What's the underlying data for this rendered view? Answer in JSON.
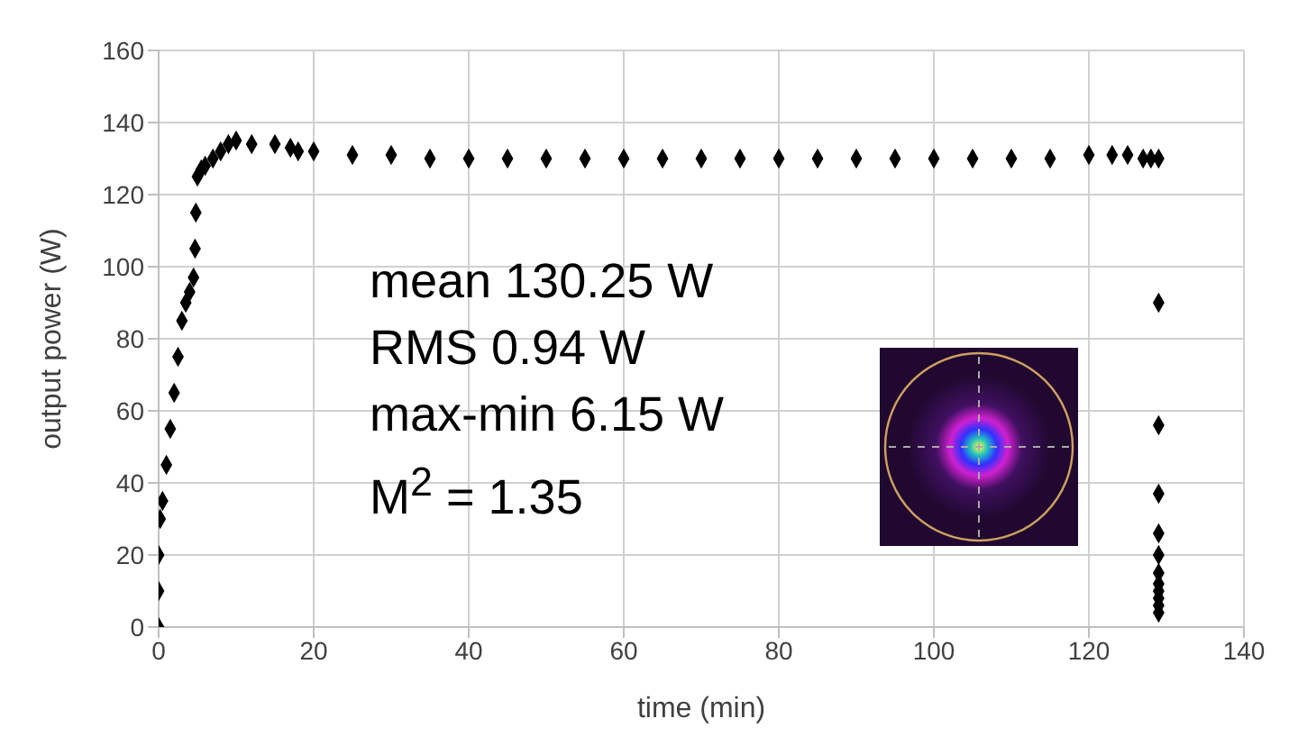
{
  "chart_data": {
    "type": "scatter",
    "xlabel": "time (min)",
    "ylabel": "output power (W)",
    "xlim": [
      0,
      140
    ],
    "xticks": [
      0,
      20,
      40,
      60,
      80,
      100,
      120,
      140
    ],
    "ylim": [
      0,
      160
    ],
    "yticks": [
      0,
      20,
      40,
      60,
      80,
      100,
      120,
      140,
      160
    ],
    "grid": true,
    "marker": "diamond",
    "annotations": [
      "mean 130.25 W",
      "RMS 0.94 W",
      "max-min 6.15 W",
      "M$^{2}$ = 1.35"
    ],
    "series": [
      {
        "color": "#000000",
        "x": [
          0,
          0,
          0,
          0.2,
          0.5,
          1,
          1.5,
          2,
          2.5,
          3,
          3.5,
          4,
          4.5,
          4.7,
          4.8,
          5,
          5.5,
          6,
          7,
          8,
          9,
          10,
          12,
          15,
          17,
          18,
          20,
          25,
          30,
          35,
          40,
          45,
          50,
          55,
          60,
          65,
          70,
          75,
          80,
          85,
          90,
          95,
          100,
          105,
          110,
          115,
          120,
          123,
          125,
          127,
          128,
          129,
          129,
          129,
          129,
          129,
          129,
          129,
          129,
          129,
          129,
          129,
          129
        ],
        "values": [
          0,
          10,
          20,
          30,
          35,
          45,
          55,
          65,
          75,
          85,
          90,
          93,
          97,
          105,
          115,
          125,
          127,
          128,
          130,
          132,
          134,
          135,
          134,
          134,
          133,
          132,
          132,
          131,
          131,
          130,
          130,
          130,
          130,
          130,
          130,
          130,
          130,
          130,
          130,
          130,
          130,
          130,
          130,
          130,
          130,
          130,
          131,
          131,
          131,
          130,
          130,
          130,
          90,
          56,
          37,
          26,
          20,
          15,
          12,
          10,
          8,
          6,
          4
        ]
      }
    ]
  }
}
